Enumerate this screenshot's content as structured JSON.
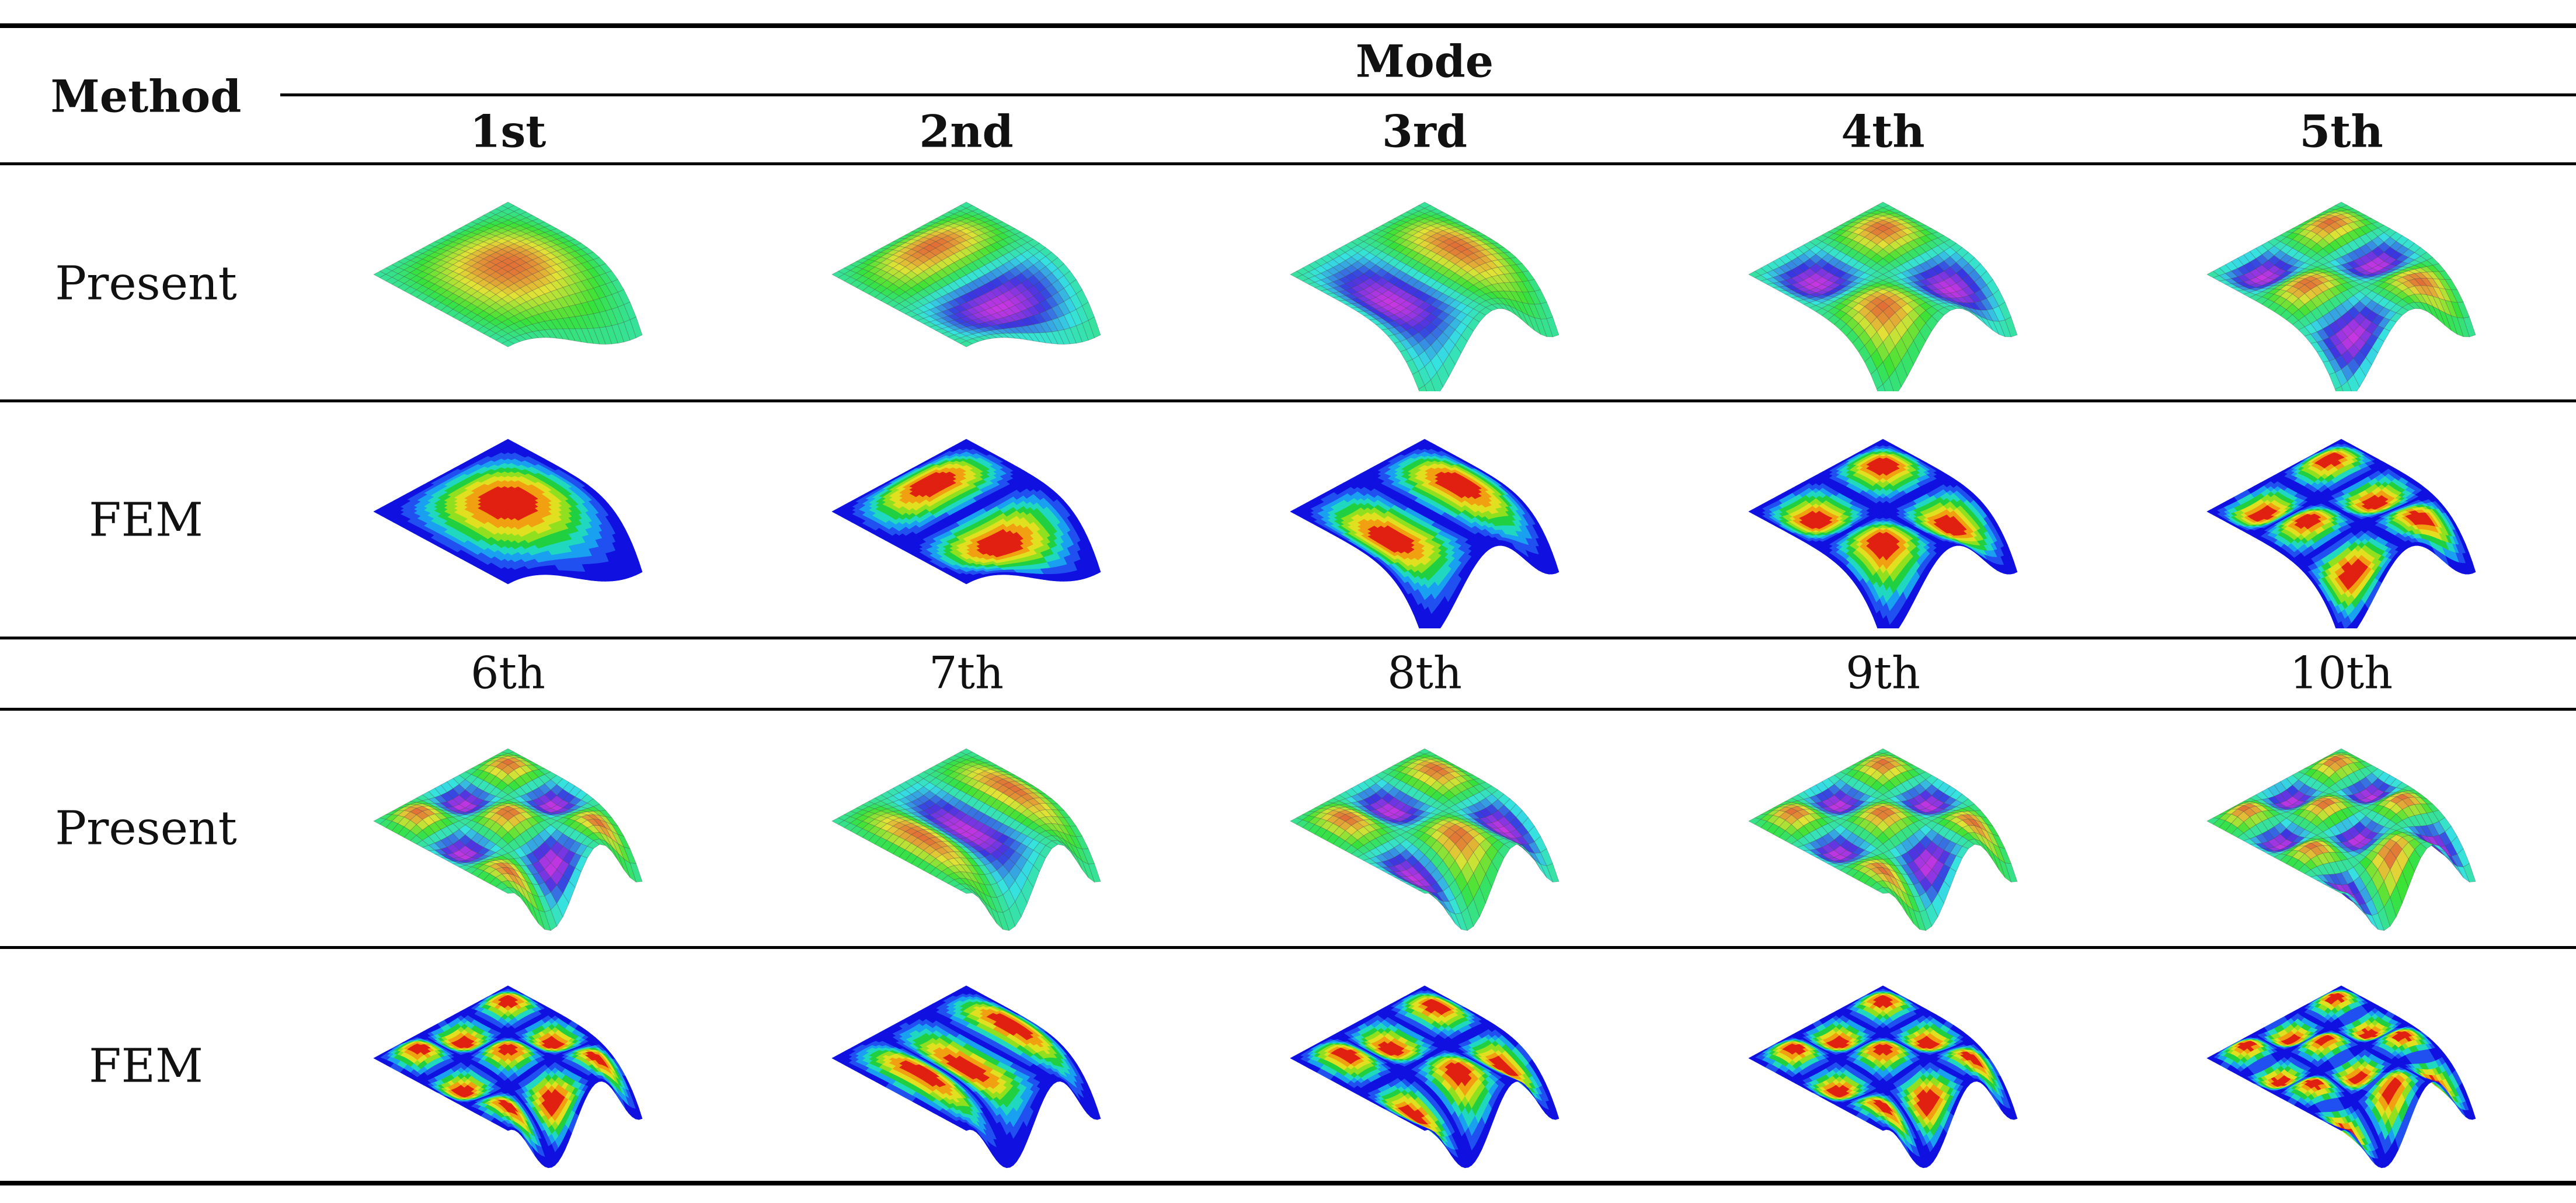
{
  "table": {
    "method_header": "Method",
    "mode_header": "Mode",
    "mode_labels_top": [
      "1st",
      "2nd",
      "3rd",
      "4th",
      "5th"
    ],
    "mode_labels_bottom": [
      "6th",
      "7th",
      "8th",
      "9th",
      "10th"
    ],
    "rows": [
      {
        "label": "Present",
        "kind": "present",
        "modes": [
          [
            1,
            1
          ],
          [
            2,
            1
          ],
          [
            1,
            2
          ],
          [
            2,
            2
          ],
          [
            3,
            2
          ]
        ]
      },
      {
        "label": "FEM",
        "kind": "fem",
        "modes": [
          [
            1,
            1
          ],
          [
            2,
            1
          ],
          [
            1,
            2
          ],
          [
            2,
            2
          ],
          [
            3,
            2
          ]
        ]
      },
      {
        "label": "Present",
        "kind": "present",
        "modes": [
          [
            3,
            3
          ],
          [
            1,
            3
          ],
          [
            2,
            3
          ],
          [
            3,
            3
          ],
          [
            4,
            3
          ]
        ]
      },
      {
        "label": "FEM",
        "kind": "fem",
        "modes": [
          [
            3,
            3
          ],
          [
            1,
            3
          ],
          [
            2,
            3
          ],
          [
            3,
            3
          ],
          [
            4,
            3
          ]
        ]
      }
    ]
  }
}
